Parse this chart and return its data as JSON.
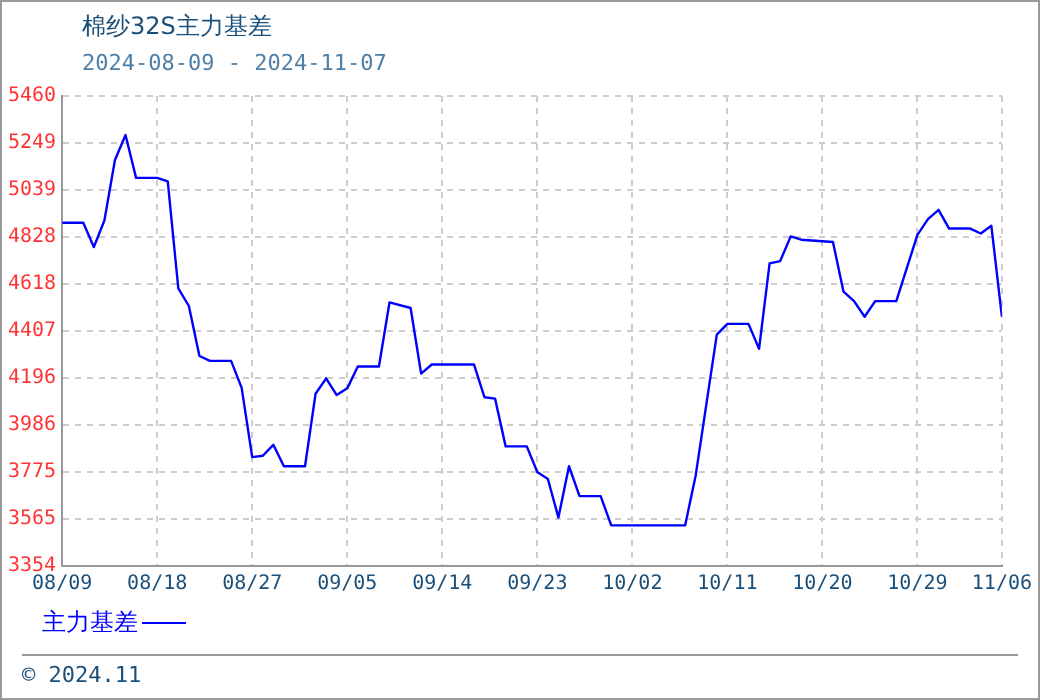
{
  "chart_data": {
    "type": "line",
    "title": "棉纱32S主力基差",
    "subtitle": "2024-08-09 - 2024-11-07",
    "annotations": [
      "© 2024.11"
    ],
    "x": [
      "2024-08-09",
      "2024-08-11",
      "2024-08-12",
      "2024-08-13",
      "2024-08-14",
      "2024-08-15",
      "2024-08-16",
      "2024-08-18",
      "2024-08-19",
      "2024-08-20",
      "2024-08-21",
      "2024-08-22",
      "2024-08-23",
      "2024-08-25",
      "2024-08-26",
      "2024-08-27",
      "2024-08-28",
      "2024-08-29",
      "2024-08-30",
      "2024-09-01",
      "2024-09-02",
      "2024-09-03",
      "2024-09-04",
      "2024-09-05",
      "2024-09-06",
      "2024-09-08",
      "2024-09-09",
      "2024-09-11",
      "2024-09-12",
      "2024-09-13",
      "2024-09-17",
      "2024-09-18",
      "2024-09-19",
      "2024-09-20",
      "2024-09-22",
      "2024-09-23",
      "2024-09-24",
      "2024-09-25",
      "2024-09-26",
      "2024-09-27",
      "2024-09-29",
      "2024-09-30",
      "2024-10-07",
      "2024-10-08",
      "2024-10-10",
      "2024-10-11",
      "2024-10-13",
      "2024-10-14",
      "2024-10-15",
      "2024-10-16",
      "2024-10-17",
      "2024-10-18",
      "2024-10-21",
      "2024-10-22",
      "2024-10-23",
      "2024-10-24",
      "2024-10-25",
      "2024-10-27",
      "2024-10-29",
      "2024-10-30",
      "2024-10-31",
      "2024-11-01",
      "2024-11-03",
      "2024-11-04",
      "2024-11-05",
      "2024-11-06"
    ],
    "series": [
      {
        "name": "主力基差",
        "color": "#0000ff",
        "values": [
          4892,
          4892,
          4783,
          4902,
          5173,
          5285,
          5093,
          5093,
          5077,
          4598,
          4519,
          4295,
          4273,
          4273,
          4152,
          3842,
          3848,
          3897,
          3801,
          3801,
          4126,
          4195,
          4120,
          4150,
          4248,
          4248,
          4535,
          4510,
          4216,
          4257,
          4257,
          4110,
          4104,
          3890,
          3890,
          3775,
          3744,
          3571,
          3801,
          3667,
          3667,
          3536,
          3536,
          3760,
          4391,
          4439,
          4439,
          4327,
          4710,
          4720,
          4831,
          4816,
          4806,
          4583,
          4541,
          4471,
          4541,
          4541,
          4838,
          4908,
          4950,
          4866,
          4866,
          4844,
          4879,
          4471
        ]
      }
    ],
    "xlim": [
      "2024-08-09",
      "2024-11-06"
    ],
    "xticks": [
      {
        "value": "2024-08-09",
        "label": "08/09"
      },
      {
        "value": "2024-08-18",
        "label": "08/18"
      },
      {
        "value": "2024-08-27",
        "label": "08/27"
      },
      {
        "value": "2024-09-05",
        "label": "09/05"
      },
      {
        "value": "2024-09-14",
        "label": "09/14"
      },
      {
        "value": "2024-09-23",
        "label": "09/23"
      },
      {
        "value": "2024-10-02",
        "label": "10/02"
      },
      {
        "value": "2024-10-11",
        "label": "10/11"
      },
      {
        "value": "2024-10-20",
        "label": "10/20"
      },
      {
        "value": "2024-10-29",
        "label": "10/29"
      },
      {
        "value": "2024-11-06",
        "label": "11/06"
      }
    ],
    "ylim": [
      3354,
      5460
    ],
    "yticks": [
      3354,
      3565,
      3775,
      3986,
      4196,
      4407,
      4618,
      4828,
      5039,
      5249,
      5460
    ],
    "grid": true,
    "legend": "bottom",
    "line_style": "solid"
  }
}
